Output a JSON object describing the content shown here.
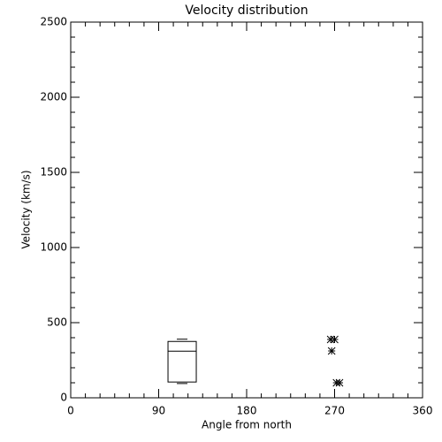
{
  "chart_data": {
    "type": "box",
    "title": "Velocity distribution",
    "xlabel": "Angle from north",
    "ylabel": "Velocity (km/s)",
    "xlim": [
      0,
      360
    ],
    "xticks": [
      0,
      90,
      180,
      270,
      360
    ],
    "ylim": [
      0,
      2500
    ],
    "yticks": [
      0,
      500,
      1000,
      1500,
      2000,
      2500
    ],
    "boxes": [
      {
        "x": 114,
        "min": 95,
        "q1": 105,
        "median": 310,
        "q3": 375,
        "max": 390
      }
    ],
    "points": {
      "x": [
        266,
        270,
        267,
        272,
        275
      ],
      "y": [
        388,
        388,
        312,
        100,
        100
      ]
    },
    "color": "#000000"
  }
}
